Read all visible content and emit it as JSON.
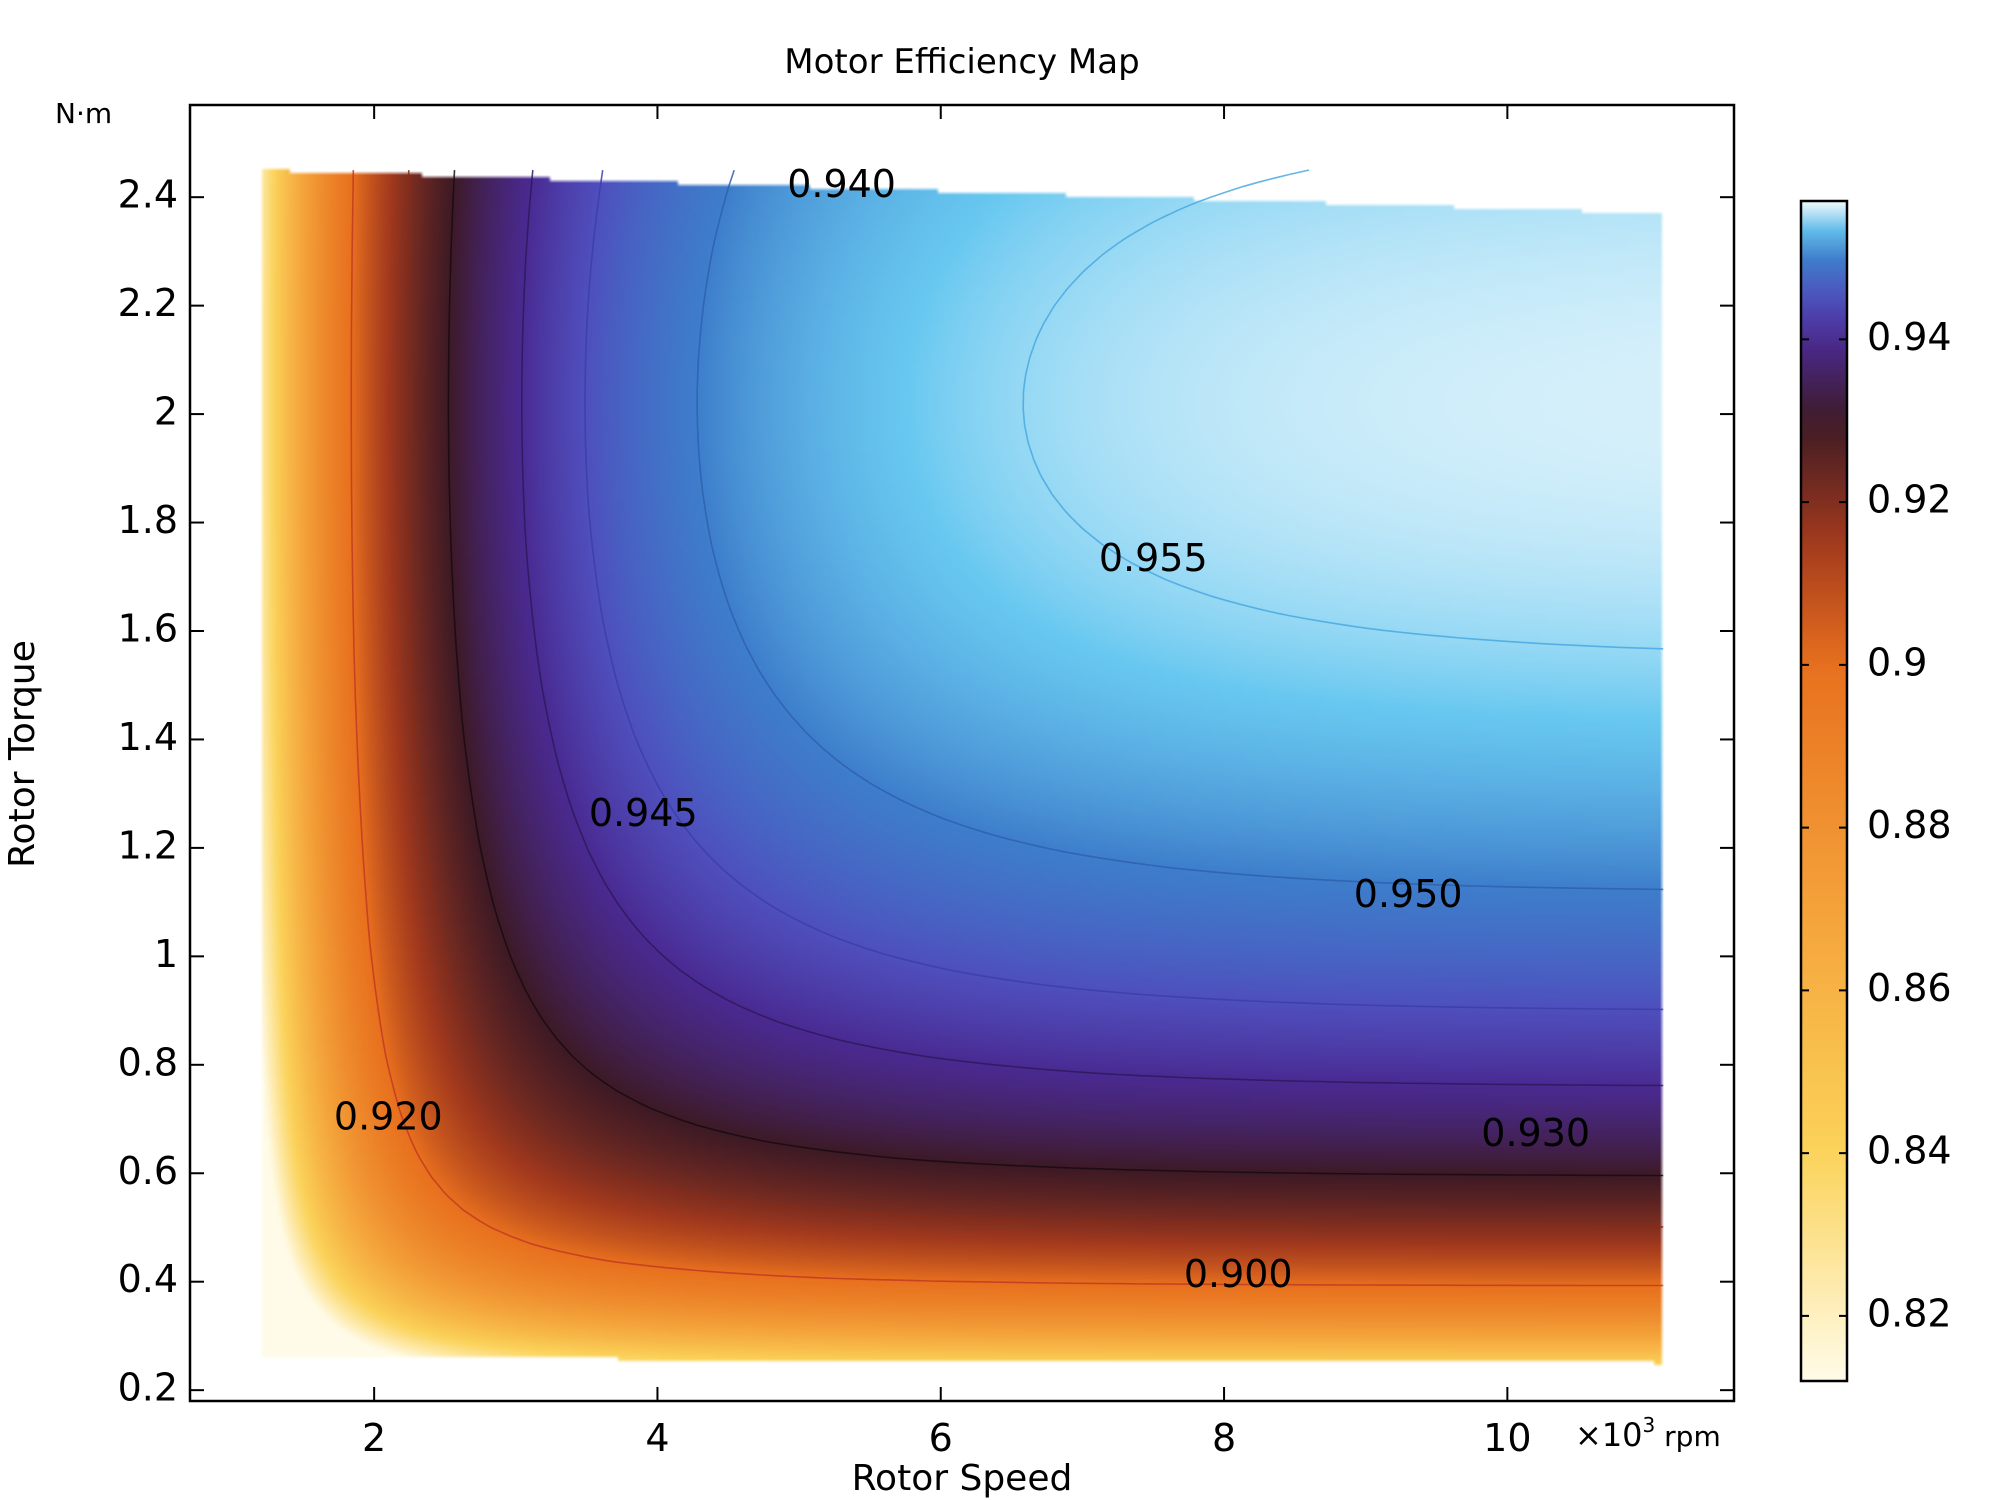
{
  "chart_data": {
    "type": "heatmap",
    "title": "Motor Efficiency Map",
    "xlabel": "Rotor Speed",
    "ylabel": "Rotor Torque",
    "x_unit": "×10³ rpm",
    "y_unit": "N·m",
    "xlim": [
      0.7,
      11.6
    ],
    "ylim": [
      0.18,
      2.57
    ],
    "data_x_range": [
      1.2,
      11.1
    ],
    "data_y_range": [
      0.25,
      2.45
    ],
    "x_ticks": [
      2,
      4,
      6,
      8,
      10
    ],
    "x_tick_labels": [
      "2",
      "4",
      "6",
      "8",
      "10"
    ],
    "y_ticks": [
      0.2,
      0.4,
      0.6,
      0.8,
      1.0,
      1.2,
      1.4,
      1.6,
      1.8,
      2.0,
      2.2,
      2.4
    ],
    "y_tick_labels": [
      "0.2",
      "0.4",
      "0.6",
      "0.8",
      "1",
      "1.2",
      "1.4",
      "1.6",
      "1.8",
      "2",
      "2.2",
      "2.4"
    ],
    "colorbar": {
      "range": [
        0.812,
        0.957
      ],
      "ticks": [
        0.82,
        0.84,
        0.86,
        0.88,
        0.9,
        0.92,
        0.94
      ],
      "tick_labels": [
        "0.82",
        "0.84",
        "0.86",
        "0.88",
        "0.9",
        "0.92",
        "0.94"
      ],
      "colormap": [
        {
          "v": 0.812,
          "color": "#fffbe8"
        },
        {
          "v": 0.84,
          "color": "#fbd35a"
        },
        {
          "v": 0.87,
          "color": "#f4a23a"
        },
        {
          "v": 0.9,
          "color": "#e8701e"
        },
        {
          "v": 0.915,
          "color": "#a2391d"
        },
        {
          "v": 0.93,
          "color": "#3d1a25"
        },
        {
          "v": 0.94,
          "color": "#4a2a92"
        },
        {
          "v": 0.945,
          "color": "#4f4fbd"
        },
        {
          "v": 0.95,
          "color": "#3e7ecb"
        },
        {
          "v": 0.954,
          "color": "#68c8f0"
        },
        {
          "v": 0.957,
          "color": "#f2fafd"
        }
      ]
    },
    "contour_levels": [
      {
        "level": 0.9,
        "label": "0.900",
        "label_at": [
          8.1,
          0.41
        ],
        "color": "#c23b22"
      },
      {
        "level": 0.92,
        "label": "0.920",
        "label_at": [
          2.1,
          0.7
        ],
        "color": "#8a2b16"
      },
      {
        "level": 0.93,
        "label": "0.930",
        "label_at": [
          10.2,
          0.67
        ],
        "color": "#1a0a10"
      },
      {
        "level": 0.94,
        "label": "0.940",
        "label_at": [
          5.3,
          2.42
        ],
        "color": "#2d1a5a"
      },
      {
        "level": 0.945,
        "label": "0.945",
        "label_at": [
          3.9,
          1.26
        ],
        "color": "#3a40a8"
      },
      {
        "level": 0.95,
        "label": "0.950",
        "label_at": [
          9.3,
          1.11
        ],
        "color": "#2f5fae"
      },
      {
        "level": 0.955,
        "label": "0.955",
        "label_at": [
          7.5,
          1.73
        ],
        "color": "#4aa8e0"
      }
    ],
    "legend": "colorbar-right",
    "grid": false
  }
}
